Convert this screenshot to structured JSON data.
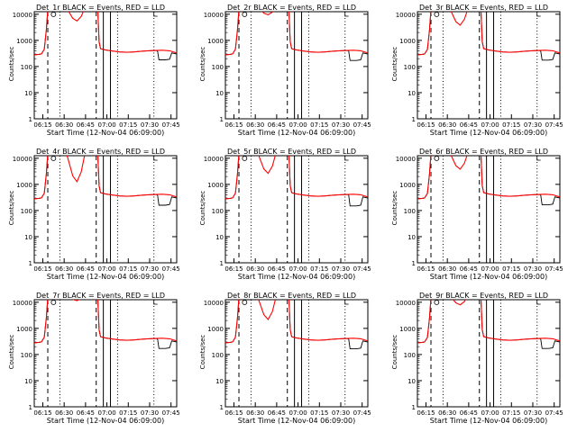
{
  "figure": {
    "xlabel": "Start Time (12-Nov-04 06:09:00)",
    "ylabel": "Counts/sec",
    "xticks": [
      "06:15",
      "06:30",
      "06:45",
      "07:00",
      "07:15",
      "07:30",
      "07:45"
    ],
    "yticks": [
      "1",
      "10",
      "100",
      "1000",
      "10000"
    ],
    "colors": {
      "events": "#000000",
      "lld": "#ff0000"
    }
  },
  "chart_data": [
    {
      "type": "line",
      "title": "Det_1r BLACK = Events, RED = LLD",
      "dip_red": 0.35,
      "dip_black": 0.0,
      "tail_black": 180
    },
    {
      "type": "line",
      "title": "Det_2r BLACK = Events, RED = LLD",
      "dip_red": 0.2,
      "dip_black": 0.0,
      "tail_black": 170
    },
    {
      "type": "line",
      "title": "Det_3r BLACK = Events, RED = LLD",
      "dip_red": 0.45,
      "dip_black": 0.0,
      "tail_black": 175
    },
    {
      "type": "line",
      "title": "Det_4r BLACK = Events, RED = LLD",
      "dip_red": 0.75,
      "dip_black": 0.0,
      "tail_black": 160
    },
    {
      "type": "line",
      "title": "Det_5r BLACK = Events, RED = LLD",
      "dip_red": 0.55,
      "dip_black": 0.0,
      "tail_black": 150
    },
    {
      "type": "line",
      "title": "Det_6r BLACK = Events, RED = LLD",
      "dip_red": 0.45,
      "dip_black": 0.0,
      "tail_black": 165
    },
    {
      "type": "line",
      "title": "Det_7r BLACK = Events, RED = LLD",
      "dip_red": 0.15,
      "dip_black": 0.0,
      "tail_black": 170
    },
    {
      "type": "line",
      "title": "Det_8r BLACK = Events, RED = LLD",
      "dip_red": 0.6,
      "dip_black": 0.0,
      "tail_black": 165
    },
    {
      "type": "line",
      "title": "Det_9r BLACK = Events, RED = LLD",
      "dip_red": 0.25,
      "dip_black": 0.0,
      "tail_black": 170
    }
  ]
}
